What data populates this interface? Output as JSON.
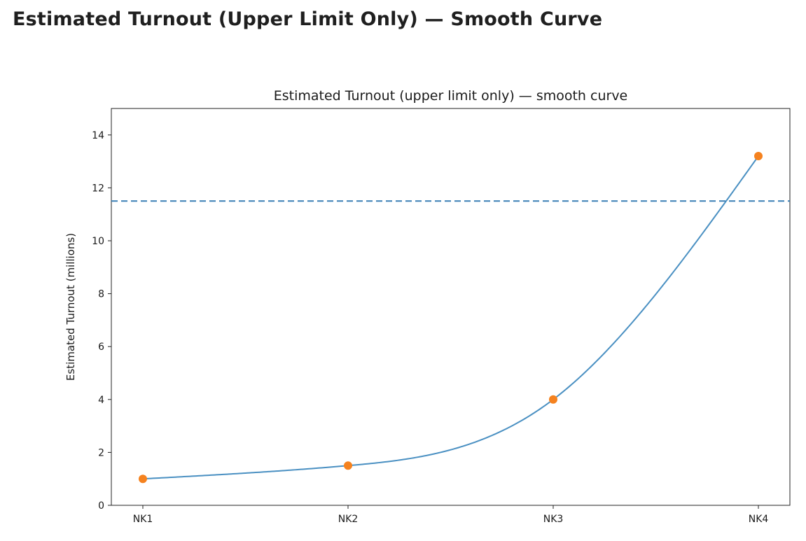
{
  "page": {
    "heading": "Estimated Turnout (Upper Limit Only) — Smooth Curve"
  },
  "chart_data": {
    "type": "line",
    "title": "Estimated Turnout (upper limit only) — smooth curve",
    "xlabel": "",
    "ylabel": "Estimated Turnout (millions)",
    "categories": [
      "NK1",
      "NK2",
      "NK3",
      "NK4"
    ],
    "series": [
      {
        "values": [
          1.0,
          1.5,
          4.0,
          13.2
        ],
        "line_color": "#4a90c2",
        "marker_color": "#f5821f",
        "smooth": true
      }
    ],
    "reference_line": {
      "y": 11.5,
      "style": "dashed",
      "color": "#3a7fb5"
    },
    "ylim": [
      0,
      15
    ],
    "yticks": [
      0,
      2,
      4,
      6,
      8,
      10,
      12,
      14
    ],
    "grid": false,
    "legend": "none"
  }
}
